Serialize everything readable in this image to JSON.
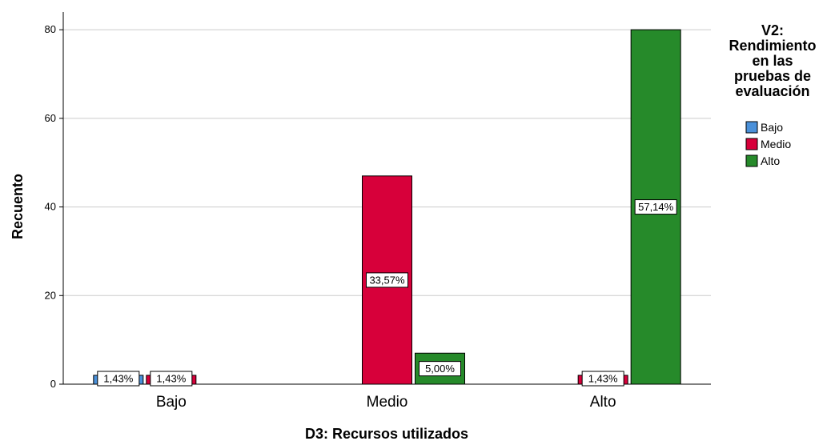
{
  "chart_data": {
    "type": "bar",
    "categories": [
      "Bajo",
      "Medio",
      "Alto"
    ],
    "series": [
      {
        "name": "Bajo",
        "color": "#4a90d9",
        "values": [
          2,
          0,
          0
        ],
        "labels": [
          "1,43%",
          "",
          ""
        ]
      },
      {
        "name": "Medio",
        "color": "#d7003a",
        "values": [
          2,
          47,
          2
        ],
        "labels": [
          "1,43%",
          "33,57%",
          "1,43%"
        ]
      },
      {
        "name": "Alto",
        "color": "#268a2a",
        "values": [
          0,
          7,
          80
        ],
        "labels": [
          "",
          "5,00%",
          "57,14%"
        ]
      }
    ],
    "xlabel": "D3: Recursos utilizados",
    "ylabel": "Recuento",
    "ylim": [
      0,
      84
    ],
    "yticks": [
      0,
      20,
      40,
      60,
      80
    ],
    "grid": true,
    "legend": {
      "title_lines": [
        "V2:",
        "Rendimiento",
        "en las",
        "pruebas de",
        "evaluación"
      ],
      "placement": "right"
    }
  }
}
